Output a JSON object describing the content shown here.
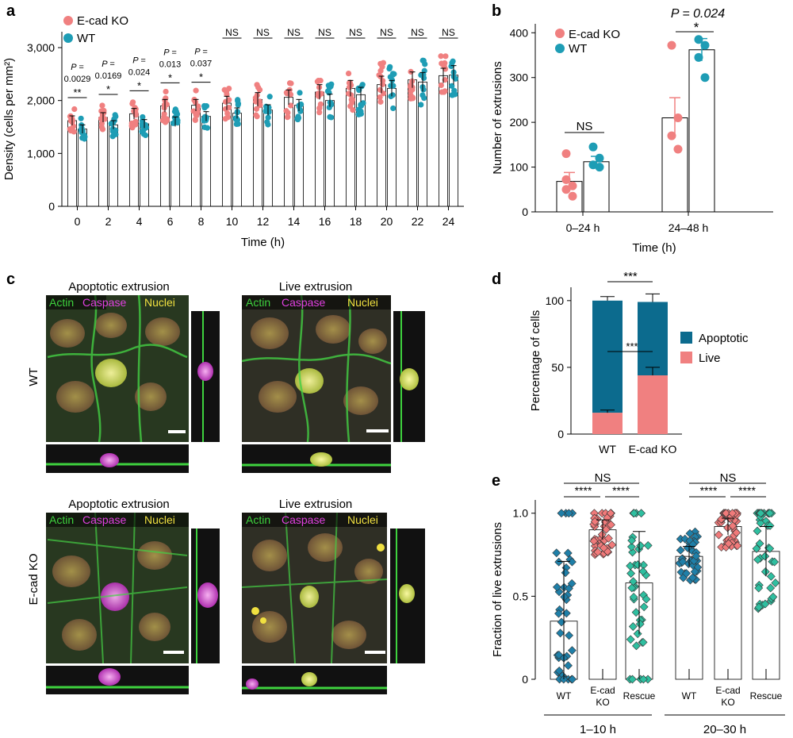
{
  "colors": {
    "ko": "#F08080",
    "wt": "#1E9DB5",
    "apoptotic": "#0C6B8E",
    "live": "#F08080",
    "e_wt": "#1F7FA8",
    "e_ko": "#F07A7A",
    "e_rescue": "#2FBFA0",
    "actin": "#3ED23E",
    "caspase": "#E040E0",
    "nuclei": "#F0E040"
  },
  "panel_letters": {
    "a": "a",
    "b": "b",
    "c": "c",
    "d": "d",
    "e": "e"
  },
  "chart_data": [
    {
      "id": "a",
      "type": "bar",
      "xlabel": "Time (h)",
      "ylabel": "Density (cells per mm²)",
      "ylim": [
        0,
        3300
      ],
      "yticks": [
        "0",
        "1,000",
        "2,000",
        "3,000"
      ],
      "categories": [
        "0",
        "2",
        "4",
        "6",
        "8",
        "10",
        "12",
        "14",
        "16",
        "18",
        "20",
        "22",
        "24"
      ],
      "series": [
        {
          "name": "E-cad KO",
          "values": [
            1620,
            1680,
            1750,
            1900,
            1910,
            1950,
            2020,
            2060,
            2160,
            2230,
            2300,
            2390,
            2470
          ],
          "errors": [
            90,
            90,
            100,
            120,
            110,
            130,
            130,
            140,
            140,
            150,
            160,
            150,
            140
          ]
        },
        {
          "name": "WT",
          "values": [
            1460,
            1540,
            1560,
            1600,
            1700,
            1760,
            1820,
            1910,
            2000,
            2110,
            2230,
            2350,
            2480
          ],
          "errors": [
            80,
            80,
            80,
            90,
            90,
            100,
            100,
            110,
            120,
            140,
            150,
            180,
            180
          ]
        }
      ],
      "annotations": [
        {
          "p": "P =",
          "pv": "0.0029",
          "stars": "**"
        },
        {
          "p": "P =",
          "pv": "0.0169",
          "stars": "*"
        },
        {
          "p": "P =",
          "pv": "0.024",
          "stars": "*"
        },
        {
          "p": "P =",
          "pv": "0.013",
          "stars": "*"
        },
        {
          "p": "P =",
          "pv": "0.037",
          "stars": "*"
        },
        {
          "stars": "NS"
        },
        {
          "stars": "NS"
        },
        {
          "stars": "NS"
        },
        {
          "stars": "NS"
        },
        {
          "stars": "NS"
        },
        {
          "stars": "NS"
        },
        {
          "stars": "NS"
        },
        {
          "stars": "NS"
        }
      ]
    },
    {
      "id": "b",
      "type": "bar",
      "xlabel": "Time (h)",
      "ylabel": "Number of extrusions",
      "ylim": [
        0,
        420
      ],
      "yticks": [
        "0",
        "100",
        "200",
        "300",
        "400"
      ],
      "categories": [
        "0–24 h",
        "24–48 h"
      ],
      "series": [
        {
          "name": "E-cad KO",
          "values": [
            68,
            210
          ],
          "errors": [
            20,
            45
          ],
          "points": [
            [
              130,
              58,
              50,
              35,
              72
            ],
            [
              372,
              210,
              170,
              140
            ]
          ]
        },
        {
          "name": "WT",
          "values": [
            112,
            362
          ],
          "errors": [
            12,
            25
          ],
          "points": [
            [
              145,
              120,
              105,
              100
            ],
            [
              385,
              372,
              345,
              300
            ]
          ]
        }
      ],
      "annotations": [
        {
          "text": "NS"
        },
        {
          "text": "*",
          "p": "P = 0.024"
        }
      ]
    },
    {
      "id": "d",
      "type": "bar",
      "ylabel": "Percentage of cells",
      "ylim": [
        0,
        110
      ],
      "yticks": [
        "0",
        "50",
        "100"
      ],
      "categories": [
        "WT",
        "E-cad KO"
      ],
      "series": [
        {
          "name": "Live",
          "values": [
            16,
            44
          ],
          "errors": [
            2,
            6
          ]
        },
        {
          "name": "Apoptotic",
          "values": [
            84,
            55
          ],
          "errors": [
            3,
            6
          ]
        }
      ],
      "annotations": [
        "***",
        "***"
      ]
    },
    {
      "id": "e",
      "type": "bar",
      "ylabel": "Fraction of live extrusions",
      "ylim": [
        0,
        1.08
      ],
      "yticks": [
        "0",
        "0.5",
        "1.0"
      ],
      "groups": [
        "1–10 h",
        "20–30 h"
      ],
      "categories": [
        "WT",
        "E-cad\nKO",
        "Rescue",
        "WT",
        "E-cad\nKO",
        "Rescue"
      ],
      "values": [
        0.35,
        0.9,
        0.58,
        0.74,
        0.92,
        0.77
      ],
      "errors": [
        0.36,
        0.06,
        0.31,
        0.06,
        0.05,
        0.15
      ],
      "annotations": [
        {
          "group": 0,
          "ns": "NS",
          "s1": "****",
          "s2": "****"
        },
        {
          "group": 1,
          "ns": "NS",
          "s1": "****",
          "s2": "****"
        }
      ]
    }
  ],
  "legend_a": [
    "E-cad KO",
    "WT"
  ],
  "legend_b": [
    "E-cad KO",
    "WT"
  ],
  "legend_d": [
    "Apoptotic",
    "Live"
  ],
  "panel_c": {
    "row_labels": [
      "WT",
      "E-cad KO"
    ],
    "titles": [
      "Apoptotic extrusion",
      "Live extrusion",
      "Apoptotic extrusion",
      "Live extrusion"
    ],
    "channel_labels": [
      "Actin",
      "Caspase",
      "Nuclei"
    ]
  }
}
